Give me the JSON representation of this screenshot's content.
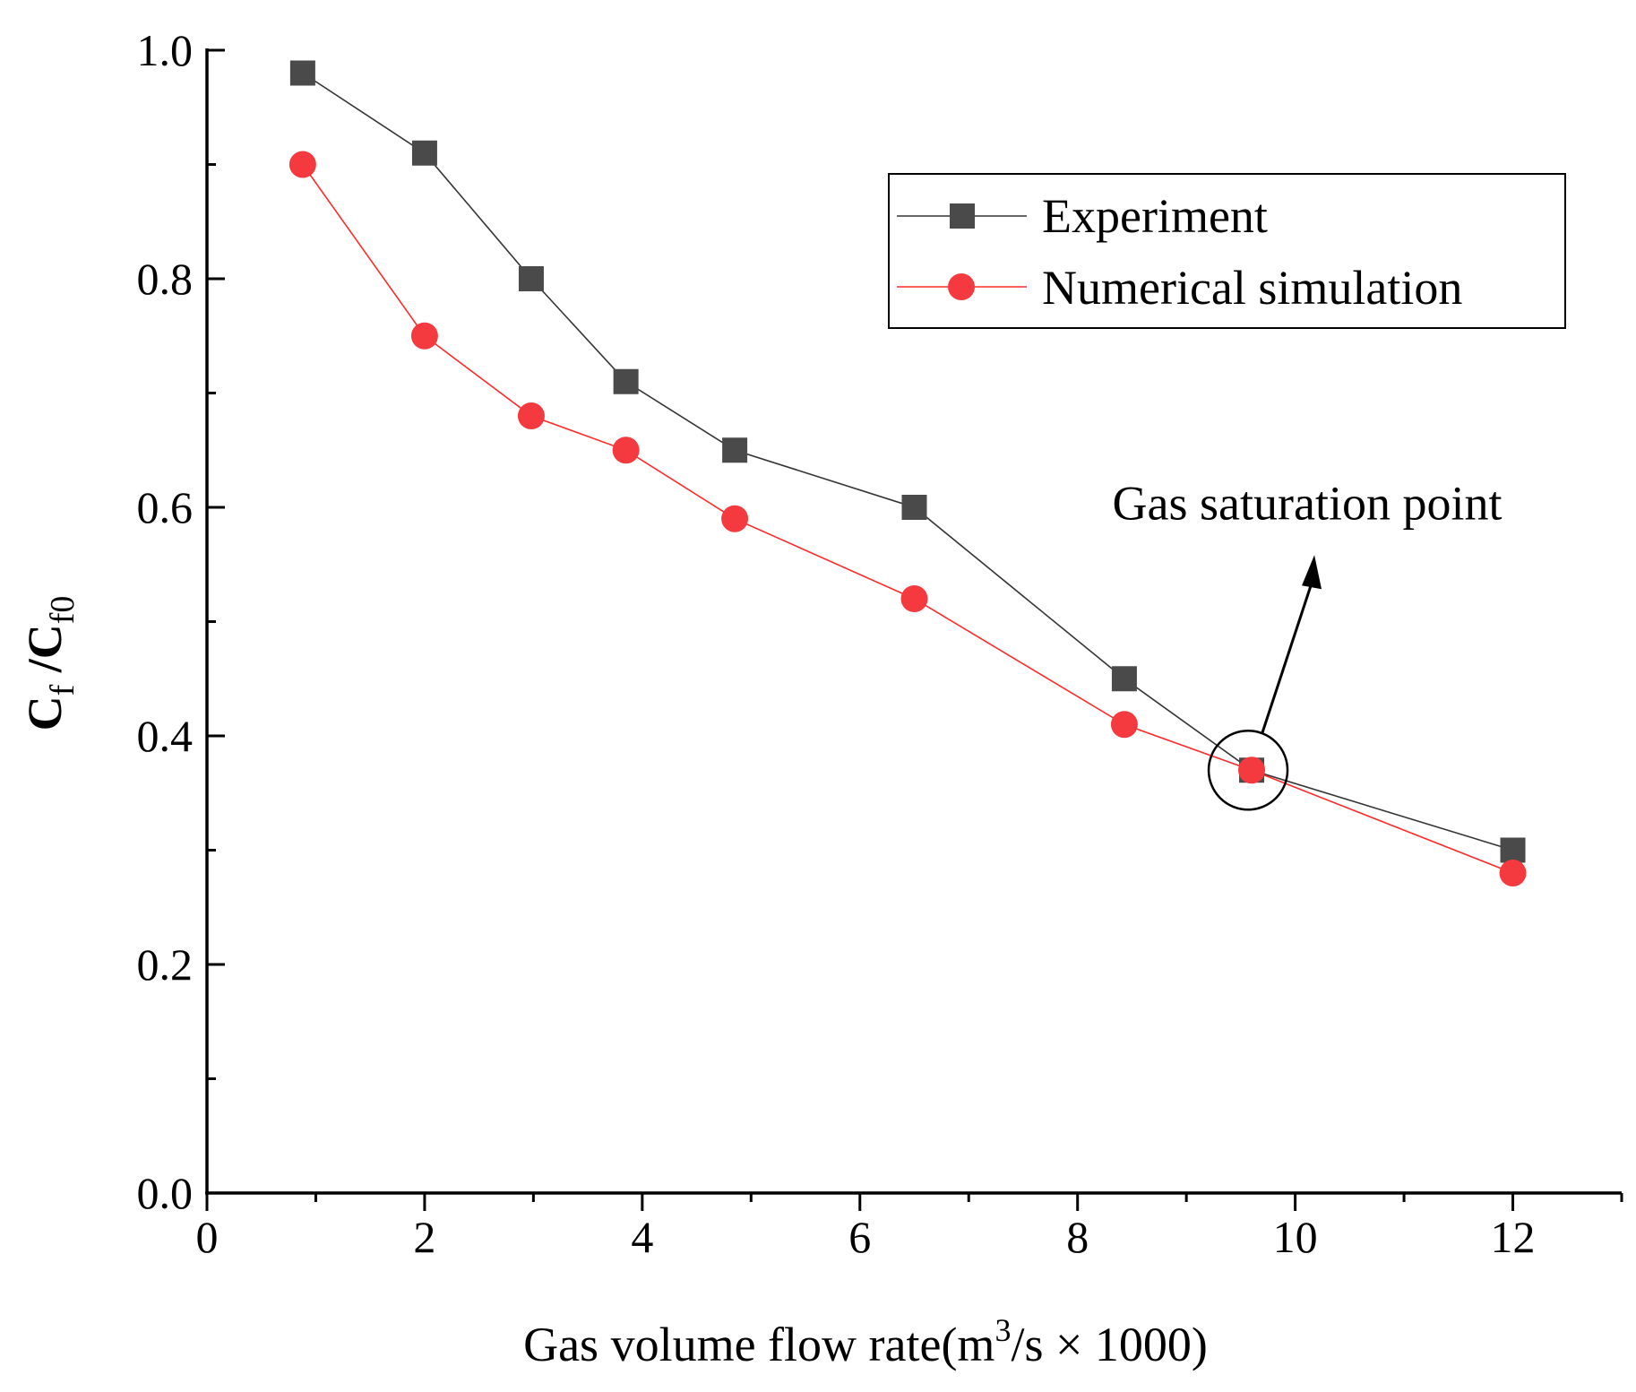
{
  "chart_data": {
    "type": "line",
    "xlabel": {
      "main": "Gas volume flow rate(m",
      "sup": "3",
      "tail": "/s × 1000)"
    },
    "ylabel": {
      "p1": "C",
      "s1": "f",
      "p2": " /C",
      "s2": "f0"
    },
    "xlim": [
      0,
      13
    ],
    "ylim": [
      0,
      1.0
    ],
    "x_ticks": [
      0,
      2,
      4,
      6,
      8,
      10,
      12
    ],
    "x_tick_labels": [
      "0",
      "2",
      "4",
      "6",
      "8",
      "10",
      "12"
    ],
    "y_ticks": [
      0.0,
      0.2,
      0.4,
      0.6,
      0.8,
      1.0
    ],
    "y_tick_labels": [
      "0.0",
      "0.2",
      "0.4",
      "0.6",
      "0.8",
      "1.0"
    ],
    "legend_position": "top-right",
    "series": [
      {
        "name": "Experiment",
        "marker": "square",
        "color": "#4a4a4a",
        "line_color": "#333333",
        "x": [
          0.88,
          2.0,
          2.98,
          3.85,
          4.85,
          6.5,
          8.43,
          9.6,
          12.0
        ],
        "y": [
          0.98,
          0.91,
          0.8,
          0.71,
          0.65,
          0.6,
          0.45,
          0.37,
          0.3
        ]
      },
      {
        "name": "Numerical simulation",
        "marker": "circle",
        "color": "#f53a3f",
        "line_color": "#ff2a2a",
        "x": [
          0.88,
          2.0,
          2.98,
          3.85,
          4.85,
          6.5,
          8.43,
          9.6,
          12.0
        ],
        "y": [
          0.9,
          0.75,
          0.68,
          0.65,
          0.59,
          0.52,
          0.41,
          0.37,
          0.28
        ]
      }
    ],
    "annotation": {
      "text": "Gas saturation point",
      "target_x": 9.6,
      "target_y": 0.37
    }
  }
}
